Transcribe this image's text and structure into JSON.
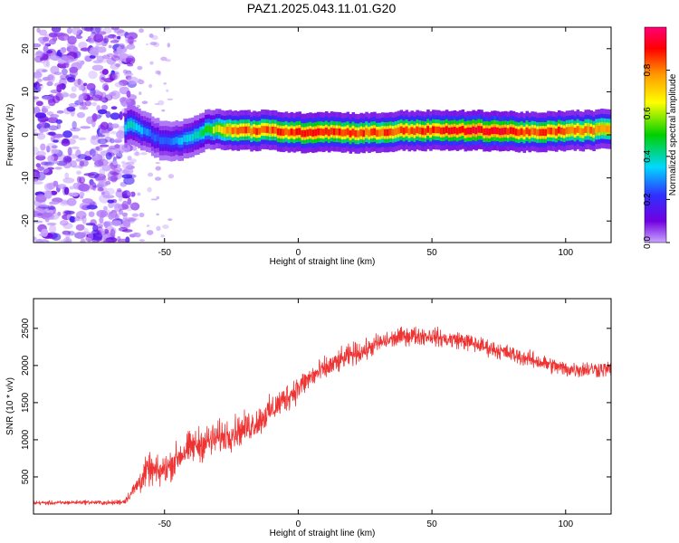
{
  "title": "PAZ1.2025.043.11.01.G20",
  "colors": {
    "snr_line": "#ee3333",
    "background": "#ffffff",
    "axis": "#000000"
  },
  "chart_data": [
    {
      "type": "heatmap",
      "title": "PAZ1.2025.043.11.01.G20",
      "xlabel": "Height of straight line (km)",
      "ylabel": "Frequency (Hz)",
      "xlim": [
        -99,
        117
      ],
      "ylim": [
        -25,
        25
      ],
      "x_ticks": [
        -50,
        0,
        50,
        100
      ],
      "y_ticks": [
        -20,
        -10,
        0,
        10,
        20
      ],
      "colorbar": {
        "label": "Normalized spectral amplitude",
        "range": [
          0,
          1
        ],
        "ticks": [
          0.0,
          0.2,
          0.4,
          0.6,
          0.8
        ],
        "colormap": [
          "#c9a7ff",
          "#7000e0",
          "#3030ff",
          "#00d8ff",
          "#00d000",
          "#ffff00",
          "#ff9900",
          "#ff0000",
          "#ff0077"
        ]
      },
      "noise_region_x": [
        -99,
        -65
      ],
      "ridge": {
        "x": [
          -65,
          -62,
          -58,
          -55,
          -52,
          -48,
          -45,
          -42,
          -38,
          -35,
          -30,
          -25,
          -20,
          -10,
          0,
          10,
          20,
          30,
          40,
          50,
          60,
          70,
          80,
          90,
          100,
          110,
          117
        ],
        "freq": [
          1.5,
          2.5,
          1.0,
          0.0,
          -1.0,
          -1.5,
          -1.5,
          -1.0,
          0.0,
          1.0,
          1.5,
          1.0,
          1.0,
          1.0,
          0.5,
          0.8,
          0.5,
          0.5,
          1.0,
          1.0,
          1.0,
          1.0,
          0.8,
          0.5,
          1.0,
          1.0,
          1.5
        ],
        "amplitude": [
          0.4,
          0.45,
          0.35,
          0.3,
          0.3,
          0.3,
          0.35,
          0.4,
          0.45,
          0.5,
          0.65,
          0.8,
          0.85,
          0.85,
          0.9,
          0.9,
          0.85,
          0.85,
          0.85,
          0.9,
          0.9,
          0.95,
          0.9,
          0.85,
          0.85,
          0.8,
          0.75
        ]
      }
    },
    {
      "type": "line",
      "xlabel": "Height of straight line (km)",
      "ylabel": "SNR (10 * v/v)",
      "xlim": [
        -99,
        117
      ],
      "ylim": [
        0,
        2900
      ],
      "x_ticks": [
        -50,
        0,
        50,
        100
      ],
      "y_ticks": [
        500,
        1000,
        1500,
        2000,
        2500
      ],
      "series": [
        {
          "color": "#ee3333",
          "x": [
            -99,
            -90,
            -80,
            -70,
            -65,
            -62,
            -59,
            -56,
            -52,
            -48,
            -44,
            -40,
            -36,
            -32,
            -28,
            -24,
            -20,
            -15,
            -10,
            -5,
            0,
            5,
            10,
            15,
            20,
            25,
            30,
            35,
            40,
            45,
            50,
            55,
            60,
            65,
            70,
            75,
            80,
            85,
            90,
            95,
            100,
            105,
            110,
            117
          ],
          "y": [
            150,
            150,
            160,
            150,
            170,
            300,
            450,
            600,
            550,
            650,
            800,
            900,
            950,
            1000,
            1050,
            1100,
            1150,
            1250,
            1400,
            1550,
            1700,
            1850,
            1950,
            2050,
            2150,
            2200,
            2300,
            2350,
            2400,
            2400,
            2400,
            2350,
            2350,
            2300,
            2250,
            2200,
            2150,
            2100,
            2050,
            2000,
            1950,
            1950,
            1950,
            1950
          ],
          "noise_amplitude": [
            40,
            40,
            40,
            45,
            60,
            120,
            250,
            300,
            300,
            300,
            320,
            330,
            340,
            330,
            320,
            320,
            300,
            300,
            280,
            280,
            260,
            240,
            230,
            220,
            220,
            200,
            190,
            180,
            180,
            180,
            170,
            170,
            170,
            170,
            160,
            160,
            160,
            160,
            160,
            160,
            160,
            160,
            160,
            160
          ]
        }
      ]
    }
  ]
}
